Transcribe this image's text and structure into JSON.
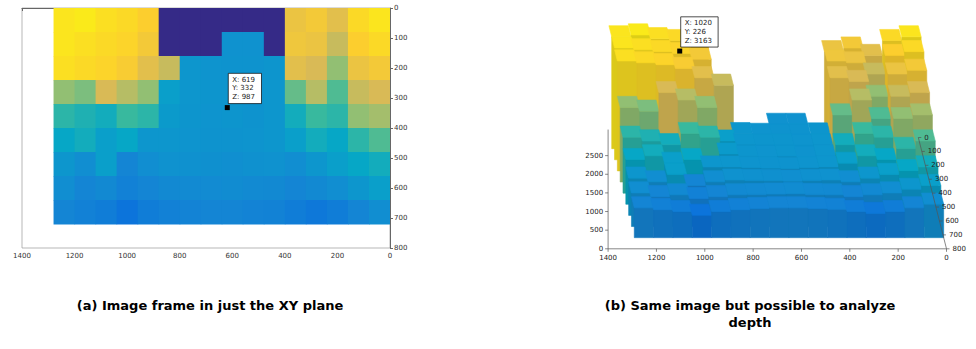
{
  "chart_data": [
    {
      "type": "heatmap",
      "label": "(a)",
      "title": "Image frame in just the XY plane",
      "xlim": [
        0,
        1400
      ],
      "xticks": [
        0,
        200,
        400,
        600,
        800,
        1000,
        1200,
        1400
      ],
      "ylim": [
        0,
        800
      ],
      "yticks": [
        0,
        100,
        200,
        300,
        400,
        500,
        600,
        700,
        800
      ],
      "zlim": [
        0,
        3200
      ],
      "cell_size": 80,
      "x": [
        1200,
        1120,
        1040,
        960,
        880,
        800,
        720,
        640,
        560,
        480,
        400,
        320,
        240,
        160,
        80,
        0
      ],
      "y": [
        0,
        80,
        160,
        240,
        320,
        400,
        480,
        560,
        640
      ],
      "values": [
        [
          3000,
          3050,
          2950,
          2900,
          2800,
          0,
          0,
          0,
          0,
          0,
          0,
          2600,
          2700,
          2500,
          2900,
          3000
        ],
        [
          3000,
          2950,
          2900,
          2850,
          2700,
          0,
          0,
          0,
          950,
          950,
          0,
          2650,
          2600,
          2300,
          2800,
          2900
        ],
        [
          2950,
          2900,
          2850,
          2750,
          2500,
          2300,
          1000,
          980,
          960,
          970,
          990,
          2500,
          2400,
          2000,
          2600,
          2700
        ],
        [
          2000,
          1900,
          2400,
          2200,
          2000,
          1100,
          1000,
          990,
          987,
          980,
          1000,
          1800,
          2200,
          1700,
          2300,
          2400
        ],
        [
          1500,
          1400,
          1300,
          1600,
          1500,
          1050,
          990,
          980,
          987,
          970,
          1000,
          1300,
          1600,
          1500,
          2000,
          2100
        ],
        [
          1200,
          1300,
          1100,
          1200,
          1000,
          1000,
          980,
          970,
          960,
          980,
          1000,
          1100,
          1300,
          1200,
          1500,
          1700
        ],
        [
          1000,
          900,
          1100,
          800,
          900,
          950,
          940,
          930,
          920,
          940,
          950,
          900,
          1000,
          1100,
          1200,
          1300
        ],
        [
          900,
          800,
          850,
          750,
          800,
          850,
          860,
          870,
          880,
          860,
          850,
          800,
          850,
          900,
          1000,
          1100
        ],
        [
          800,
          750,
          700,
          600,
          700,
          750,
          780,
          800,
          800,
          780,
          760,
          700,
          650,
          700,
          800,
          900
        ]
      ],
      "annotations": [
        {
          "x": 619,
          "y": 332,
          "text": [
            "X: 619",
            "Y: 332",
            "Z: 987"
          ]
        }
      ]
    },
    {
      "type": "surface",
      "label": "(b)",
      "title": "Same image but possible to analyze depth",
      "xlim": [
        0,
        1400
      ],
      "xticks": [
        0,
        200,
        400,
        600,
        800,
        1000,
        1200,
        1400
      ],
      "ylim": [
        0,
        800
      ],
      "yticks": [
        0,
        100,
        200,
        300,
        400,
        500,
        600,
        700,
        800
      ],
      "zlim": [
        0,
        3200
      ],
      "zticks": [
        0,
        500,
        1000,
        1500,
        2000,
        2500
      ],
      "annotations": [
        {
          "x": 1020,
          "y": 226,
          "z": 3163,
          "text": [
            "X: 1020",
            "Y: 226",
            "Z: 3163"
          ]
        }
      ]
    }
  ]
}
